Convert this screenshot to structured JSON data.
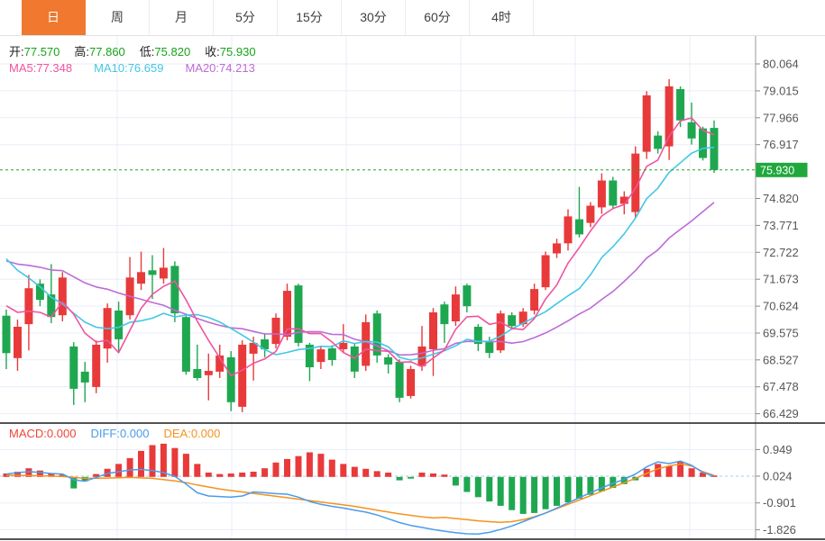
{
  "tabs": [
    {
      "label": "日",
      "name": "tab-day",
      "selected": true
    },
    {
      "label": "周",
      "name": "tab-week",
      "selected": false
    },
    {
      "label": "月",
      "name": "tab-month",
      "selected": false
    },
    {
      "label": "5分",
      "name": "tab-5min",
      "selected": false
    },
    {
      "label": "15分",
      "name": "tab-15min",
      "selected": false
    },
    {
      "label": "30分",
      "name": "tab-30min",
      "selected": false
    },
    {
      "label": "60分",
      "name": "tab-60min",
      "selected": false
    },
    {
      "label": "4时",
      "name": "tab-4hour",
      "selected": false
    }
  ],
  "overlay": {
    "ohlc": [
      {
        "name": "open",
        "label": "开:",
        "value": "77.570"
      },
      {
        "name": "high",
        "label": "高:",
        "value": "77.860"
      },
      {
        "name": "low",
        "label": "低:",
        "value": "75.820"
      },
      {
        "name": "close",
        "label": "收:",
        "value": "75.930"
      }
    ],
    "ohlc_value_color": "#17a317",
    "ma": [
      {
        "name": "ma5",
        "label": "MA5:",
        "value": "77.348",
        "color": "#f0549e"
      },
      {
        "name": "ma10",
        "label": "MA10:",
        "value": "76.659",
        "color": "#44c7e4"
      },
      {
        "name": "ma20",
        "label": "MA20:",
        "value": "74.213",
        "color": "#bd6bd6"
      }
    ],
    "macd": [
      {
        "name": "macd",
        "label": "MACD:",
        "value": "0.000",
        "color": "#f04438"
      },
      {
        "name": "diff",
        "label": "DIFF:",
        "value": "0.000",
        "color": "#4b9cea"
      },
      {
        "name": "dea",
        "label": "DEA:",
        "value": "0.000",
        "color": "#f5921e"
      }
    ]
  },
  "chart_data": {
    "type": "candlestick+macd",
    "title": "",
    "price_axis": {
      "visible_ticks": [
        "80.064",
        "79.015",
        "77.966",
        "76.917",
        "74.820",
        "73.771",
        "72.722",
        "71.673",
        "70.624",
        "69.575",
        "68.527",
        "67.478",
        "66.429"
      ],
      "top_tick_value": 80.064,
      "tick_step": 1.049,
      "current_price": "75.930"
    },
    "macd_axis": {
      "visible_ticks": [
        "0.949",
        "0.024",
        "-0.901",
        "-1.826"
      ],
      "tick_step": 0.925
    },
    "candles_ohlc": [
      [
        70.25,
        70.49,
        68.17,
        68.79
      ],
      [
        68.6,
        70.1,
        68.1,
        69.82
      ],
      [
        69.92,
        71.84,
        68.9,
        71.32
      ],
      [
        71.5,
        71.67,
        70.62,
        70.87
      ],
      [
        71.08,
        72.26,
        69.96,
        70.2
      ],
      [
        70.27,
        71.95,
        70.03,
        71.74
      ],
      [
        69.05,
        69.22,
        66.77,
        67.4
      ],
      [
        68.07,
        68.45,
        66.88,
        67.65
      ],
      [
        67.47,
        69.29,
        67.23,
        69.12
      ],
      [
        68.97,
        70.73,
        68.42,
        70.55
      ],
      [
        70.45,
        70.8,
        68.87,
        69.33
      ],
      [
        70.27,
        72.54,
        70.1,
        71.74
      ],
      [
        71.5,
        72.75,
        71.25,
        71.95
      ],
      [
        72.02,
        72.61,
        70.9,
        71.84
      ],
      [
        71.7,
        72.89,
        71.5,
        72.12
      ],
      [
        72.19,
        72.37,
        70.0,
        70.34
      ],
      [
        70.2,
        70.27,
        67.95,
        68.07
      ],
      [
        68.17,
        69.12,
        67.72,
        67.82
      ],
      [
        67.93,
        68.77,
        66.95,
        68.1
      ],
      [
        68.07,
        69.12,
        67.82,
        68.7
      ],
      [
        68.63,
        68.87,
        66.53,
        66.88
      ],
      [
        66.7,
        69.29,
        66.49,
        69.12
      ],
      [
        68.77,
        69.43,
        67.72,
        69.19
      ],
      [
        69.33,
        69.57,
        68.63,
        68.94
      ],
      [
        69.15,
        70.34,
        68.98,
        70.17
      ],
      [
        69.43,
        71.5,
        69.29,
        71.22
      ],
      [
        71.43,
        71.5,
        69.05,
        69.19
      ],
      [
        69.12,
        69.19,
        67.7,
        68.24
      ],
      [
        68.45,
        69.05,
        68.17,
        68.94
      ],
      [
        68.98,
        69.1,
        68.3,
        68.52
      ],
      [
        68.94,
        69.92,
        68.8,
        69.19
      ],
      [
        69.05,
        69.19,
        67.82,
        68.07
      ],
      [
        68.3,
        70.3,
        68.1,
        70.0
      ],
      [
        70.34,
        70.45,
        68.42,
        68.7
      ],
      [
        68.63,
        68.75,
        68.0,
        68.35
      ],
      [
        68.45,
        68.55,
        66.88,
        67.05
      ],
      [
        67.12,
        68.3,
        67.02,
        68.17
      ],
      [
        68.28,
        69.85,
        68.1,
        69.05
      ],
      [
        68.94,
        70.55,
        67.9,
        70.38
      ],
      [
        70.69,
        70.8,
        69.19,
        69.92
      ],
      [
        70.03,
        71.39,
        69.85,
        71.08
      ],
      [
        71.43,
        71.5,
        70.38,
        70.62
      ],
      [
        69.82,
        69.92,
        68.87,
        69.15
      ],
      [
        69.22,
        69.43,
        68.6,
        68.8
      ],
      [
        68.9,
        70.45,
        68.8,
        70.34
      ],
      [
        70.27,
        70.38,
        69.7,
        69.85
      ],
      [
        69.92,
        70.55,
        69.82,
        70.41
      ],
      [
        70.45,
        71.5,
        70.3,
        71.29
      ],
      [
        71.36,
        72.75,
        71.25,
        72.61
      ],
      [
        72.68,
        73.25,
        72.5,
        73.07
      ],
      [
        73.07,
        74.4,
        72.79,
        74.12
      ],
      [
        74.01,
        75.27,
        73.3,
        73.42
      ],
      [
        73.87,
        74.68,
        73.7,
        74.54
      ],
      [
        74.47,
        75.8,
        74.22,
        75.52
      ],
      [
        75.52,
        75.66,
        74.4,
        74.54
      ],
      [
        74.61,
        75.1,
        74.2,
        74.89
      ],
      [
        74.29,
        76.85,
        74.05,
        76.57
      ],
      [
        76.64,
        79.0,
        76.36,
        78.84
      ],
      [
        77.27,
        77.44,
        76.57,
        76.75
      ],
      [
        76.85,
        79.47,
        76.32,
        79.19
      ],
      [
        79.08,
        79.19,
        77.6,
        77.86
      ],
      [
        77.79,
        78.56,
        76.92,
        77.16
      ],
      [
        77.55,
        77.62,
        76.3,
        76.4
      ],
      [
        77.57,
        77.86,
        75.82,
        75.93
      ]
    ],
    "ma_warmup": [
      72.3,
      72.3,
      72.3,
      72.3,
      72.3,
      72.3,
      72.3,
      72.3,
      72.3,
      72.3,
      74.3,
      74.3,
      74.3,
      74.3,
      74.3,
      71.1,
      71.1,
      71.1,
      71.1
    ],
    "macd_hist": [
      0.12,
      0.18,
      0.3,
      0.22,
      0.12,
      0.08,
      -0.4,
      -0.15,
      0.1,
      0.28,
      0.45,
      0.65,
      0.9,
      1.1,
      1.15,
      1.0,
      0.8,
      0.45,
      0.15,
      0.1,
      0.12,
      0.15,
      0.18,
      0.3,
      0.5,
      0.62,
      0.72,
      0.85,
      0.8,
      0.6,
      0.45,
      0.35,
      0.28,
      0.2,
      0.15,
      -0.12,
      -0.06,
      0.15,
      0.12,
      0.08,
      -0.3,
      -0.52,
      -0.7,
      -0.85,
      -1.0,
      -1.15,
      -1.28,
      -1.25,
      -1.12,
      -1.0,
      -0.88,
      -0.75,
      -0.62,
      -0.5,
      -0.38,
      -0.25,
      -0.12,
      0.28,
      0.45,
      0.38,
      0.52,
      0.3,
      0.15,
      0.05
    ],
    "diff_line": [
      [
        1,
        0.1
      ],
      [
        2,
        0.15
      ],
      [
        3,
        0.18
      ],
      [
        4,
        0.16
      ],
      [
        5,
        0.12
      ],
      [
        6,
        0.1
      ],
      [
        7,
        -0.1
      ],
      [
        8,
        -0.15
      ],
      [
        9,
        -0.02
      ],
      [
        10,
        0.12
      ],
      [
        11,
        0.18
      ],
      [
        12,
        0.24
      ],
      [
        13,
        0.26
      ],
      [
        14,
        0.22
      ],
      [
        15,
        0.15
      ],
      [
        16,
        0.02
      ],
      [
        17,
        -0.25
      ],
      [
        18,
        -0.55
      ],
      [
        19,
        -0.66
      ],
      [
        20,
        -0.68
      ],
      [
        21,
        -0.7
      ],
      [
        22,
        -0.66
      ],
      [
        23,
        -0.52
      ],
      [
        24,
        -0.55
      ],
      [
        25,
        -0.58
      ],
      [
        26,
        -0.6
      ],
      [
        27,
        -0.7
      ],
      [
        28,
        -0.85
      ],
      [
        29,
        -0.95
      ],
      [
        30,
        -1.02
      ],
      [
        31,
        -1.08
      ],
      [
        32,
        -1.15
      ],
      [
        33,
        -1.22
      ],
      [
        34,
        -1.32
      ],
      [
        35,
        -1.45
      ],
      [
        36,
        -1.58
      ],
      [
        37,
        -1.68
      ],
      [
        38,
        -1.75
      ],
      [
        39,
        -1.82
      ],
      [
        40,
        -1.88
      ],
      [
        41,
        -1.93
      ],
      [
        42,
        -1.97
      ],
      [
        43,
        -1.98
      ],
      [
        44,
        -1.92
      ],
      [
        45,
        -1.82
      ],
      [
        46,
        -1.7
      ],
      [
        47,
        -1.55
      ],
      [
        48,
        -1.4
      ],
      [
        49,
        -1.25
      ],
      [
        50,
        -1.08
      ],
      [
        51,
        -0.9
      ],
      [
        52,
        -0.72
      ],
      [
        53,
        -0.55
      ],
      [
        54,
        -0.38
      ],
      [
        55,
        -0.22
      ],
      [
        56,
        -0.08
      ],
      [
        57,
        0.1
      ],
      [
        58,
        0.35
      ],
      [
        59,
        0.52
      ],
      [
        60,
        0.46
      ],
      [
        61,
        0.55
      ],
      [
        62,
        0.4
      ],
      [
        63,
        0.15
      ],
      [
        64,
        0.03
      ]
    ],
    "dea_line": [
      [
        1,
        0.06
      ],
      [
        4,
        0.04
      ],
      [
        6,
        0.02
      ],
      [
        8,
        -0.05
      ],
      [
        10,
        -0.04
      ],
      [
        12,
        -0.02
      ],
      [
        14,
        -0.05
      ],
      [
        16,
        -0.14
      ],
      [
        17,
        -0.2
      ],
      [
        18,
        -0.28
      ],
      [
        20,
        -0.42
      ],
      [
        22,
        -0.52
      ],
      [
        24,
        -0.62
      ],
      [
        26,
        -0.72
      ],
      [
        28,
        -0.82
      ],
      [
        30,
        -0.92
      ],
      [
        32,
        -1.02
      ],
      [
        34,
        -1.15
      ],
      [
        36,
        -1.28
      ],
      [
        38,
        -1.38
      ],
      [
        39,
        -1.42
      ],
      [
        40,
        -1.4
      ],
      [
        41,
        -1.44
      ],
      [
        42,
        -1.48
      ],
      [
        43,
        -1.52
      ],
      [
        44,
        -1.55
      ],
      [
        45,
        -1.57
      ],
      [
        46,
        -1.55
      ],
      [
        47,
        -1.48
      ],
      [
        48,
        -1.38
      ],
      [
        49,
        -1.25
      ],
      [
        50,
        -1.1
      ],
      [
        51,
        -0.95
      ],
      [
        52,
        -0.8
      ],
      [
        53,
        -0.65
      ],
      [
        54,
        -0.5
      ],
      [
        55,
        -0.35
      ],
      [
        56,
        -0.2
      ],
      [
        57,
        -0.05
      ],
      [
        58,
        0.12
      ],
      [
        59,
        0.28
      ],
      [
        60,
        0.38
      ],
      [
        61,
        0.45
      ],
      [
        62,
        0.38
      ],
      [
        63,
        0.18
      ],
      [
        64,
        0.05
      ]
    ],
    "colors": {
      "up": "#e83a3a",
      "down": "#1fa750",
      "ma5": "#f0549e",
      "ma10": "#44c7e4",
      "ma20": "#bd6bd6",
      "diff": "#4b9cea",
      "dea": "#f5921e",
      "grid": "#e9eef7",
      "axis_text": "#555555",
      "axis_line": "#999999",
      "separator": "#1a1a1a",
      "price_line": "#21a52a",
      "price_tag_bg": "#1fa83c",
      "price_tag_text": "#ffffff",
      "zero_dash": "#a8c8e8"
    },
    "layout": {
      "grid": true,
      "legend_position": "top-left",
      "y_axis_side": "right"
    }
  }
}
